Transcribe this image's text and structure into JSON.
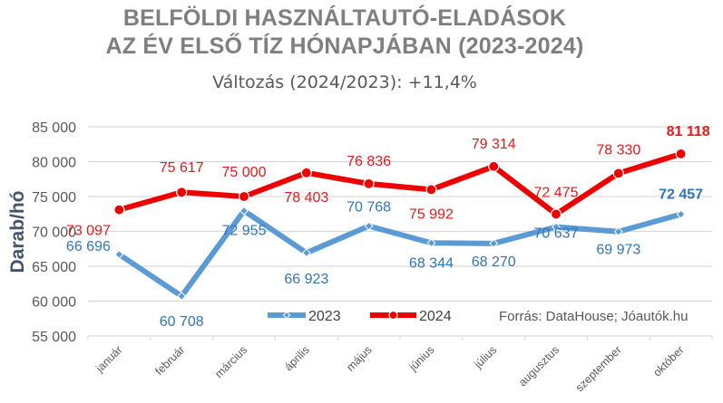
{
  "chart_data": {
    "type": "line",
    "title": [
      "BELFÖLDI HASZNÁLTAUTÓ-ELADÁSOK",
      "AZ ÉV ELSŐ TÍZ HÓNAPJÁBAN (2023-2024)"
    ],
    "subtitle": "Változás (2024/2023): +11,4%",
    "xlabel": "",
    "ylabel": "Darab/hó",
    "ylim": [
      55000,
      85000
    ],
    "yticks": [
      55000,
      60000,
      65000,
      70000,
      75000,
      80000,
      85000
    ],
    "ytick_labels": [
      "55 000",
      "60 000",
      "65 000",
      "70 000",
      "75 000",
      "80 000",
      "85 000"
    ],
    "grid": true,
    "categories": [
      "január",
      "február",
      "március",
      "április",
      "május",
      "június",
      "július",
      "augusztus",
      "szeptember",
      "október"
    ],
    "series": [
      {
        "name": "2023",
        "color": "#5b9bd5",
        "label_color": "#2e75b6",
        "values": [
          66696,
          60708,
          72955,
          66923,
          70768,
          68344,
          68270,
          70637,
          69973,
          72457
        ],
        "labels": [
          "66 696",
          "60 708",
          "72 955",
          "66 923",
          "70 768",
          "68 344",
          "68 270",
          "70 637",
          "69 973",
          "72 457"
        ]
      },
      {
        "name": "2024",
        "color": "#ee0000",
        "label_color": "#e31a1c",
        "values": [
          73097,
          75617,
          75000,
          78403,
          76836,
          75992,
          79314,
          72475,
          78330,
          81118
        ],
        "labels": [
          "73 097",
          "75 617",
          "75 000",
          "78 403",
          "76 836",
          "75 992",
          "79 314",
          "72 475",
          "78 330",
          "81 118"
        ]
      }
    ],
    "legend_position": "bottom-center",
    "source": "Forrás: DataHouse; Jóautók.hu"
  }
}
